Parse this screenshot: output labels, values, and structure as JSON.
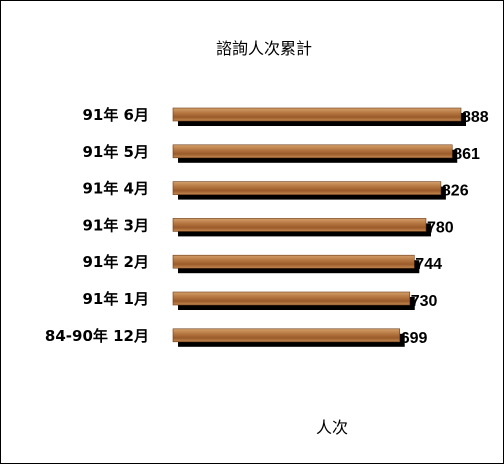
{
  "chart_data": {
    "type": "bar",
    "orientation": "horizontal",
    "title": "諮詢人次累計",
    "xlabel": "人次",
    "ylabel": "",
    "categories": [
      "91年 6月",
      "91年 5月",
      "91年 4月",
      "91年 3月",
      "91年 2月",
      "91年 1月",
      "84-90年 12月"
    ],
    "values": [
      888,
      861,
      826,
      780,
      744,
      730,
      699
    ],
    "xlim": [
      0,
      888
    ],
    "grid": false,
    "legend": "none",
    "colors": {
      "bar_fill": "#a0612e",
      "bar_highlight": "#d4a06c",
      "bar_shadow": "#000000",
      "frame": "#000000"
    }
  }
}
